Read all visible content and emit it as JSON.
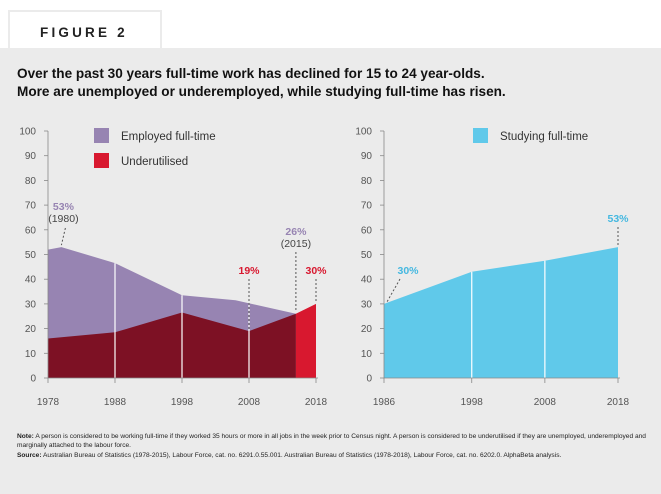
{
  "figure_label": "FIGURE 2",
  "headline": {
    "line1": "Over the past 30 years full-time work has declined for 15 to 24 year-olds.",
    "line2": "More are unemployed or underemployed, while studying full-time has risen."
  },
  "colors": {
    "employed": "#9784b2",
    "underutilised": "#7d1124",
    "underutilised_latest": "#d8182f",
    "studying": "#60c9ea",
    "annotation_purple": "#9784b2",
    "annotation_red": "#d8182f",
    "annotation_blue": "#45b8e0"
  },
  "chart_data": [
    {
      "type": "area",
      "x": [
        1978,
        1988,
        1998,
        2008,
        2015,
        2018
      ],
      "x_ticks": [
        "1978",
        "1988",
        "1998",
        "2008",
        "2018"
      ],
      "ylim": [
        0,
        100
      ],
      "y_ticks": [
        "0",
        "10",
        "20",
        "30",
        "40",
        "50",
        "60",
        "70",
        "80",
        "90",
        "100"
      ],
      "series": [
        {
          "name": "Employed full-time",
          "x": [
            1978,
            1980,
            1988,
            1998,
            2006,
            2015
          ],
          "values": [
            52,
            53,
            46.5,
            33.5,
            31.5,
            26
          ]
        },
        {
          "name": "Underutilised",
          "x": [
            1978,
            1988,
            1998,
            2008,
            2015,
            2018
          ],
          "values": [
            16,
            18.5,
            26.5,
            19,
            26,
            30
          ]
        }
      ],
      "legend": [
        "Employed full-time",
        "Underutilised"
      ],
      "annotations": [
        {
          "value": "53%",
          "sub": "(1980)",
          "series": "Employed full-time",
          "x": 1980,
          "y": 53
        },
        {
          "value": "26%",
          "sub": "(2015)",
          "series": "Employed full-time",
          "x": 2015,
          "y": 26
        },
        {
          "value": "19%",
          "sub": "",
          "series": "Underutilised",
          "x": 2008,
          "y": 19
        },
        {
          "value": "30%",
          "sub": "",
          "series": "Underutilised",
          "x": 2018,
          "y": 30
        }
      ]
    },
    {
      "type": "area",
      "x": [
        1986,
        1998,
        2008,
        2018
      ],
      "x_ticks": [
        "1986",
        "1998",
        "2008",
        "2018"
      ],
      "ylim": [
        0,
        100
      ],
      "y_ticks": [
        "0",
        "10",
        "20",
        "30",
        "40",
        "50",
        "60",
        "70",
        "80",
        "90",
        "100"
      ],
      "series": [
        {
          "name": "Studying full-time",
          "x": [
            1986,
            1998,
            2008,
            2018
          ],
          "values": [
            30,
            43,
            47.5,
            53
          ]
        }
      ],
      "legend": [
        "Studying full-time"
      ],
      "annotations": [
        {
          "value": "30%",
          "sub": "",
          "series": "Studying full-time",
          "x": 1986,
          "y": 30
        },
        {
          "value": "53%",
          "sub": "",
          "series": "Studying full-time",
          "x": 2018,
          "y": 53
        }
      ]
    }
  ],
  "notes": {
    "note_label": "Note:",
    "note_text": "A person is considered to be working full-time if they worked 35 hours or more in all jobs in the week prior to Census night. A person is considered to be underutilised if they are unemployed, underemployed and marginally attached to the labour force.",
    "source_label": "Source:",
    "source_text": "Australian Bureau of Statistics (1978-2015), Labour Force, cat. no. 6291.0.55.001. Australian Bureau of Statistics (1978-2018), Labour Force, cat. no. 6202.0. AlphaBeta analysis."
  }
}
